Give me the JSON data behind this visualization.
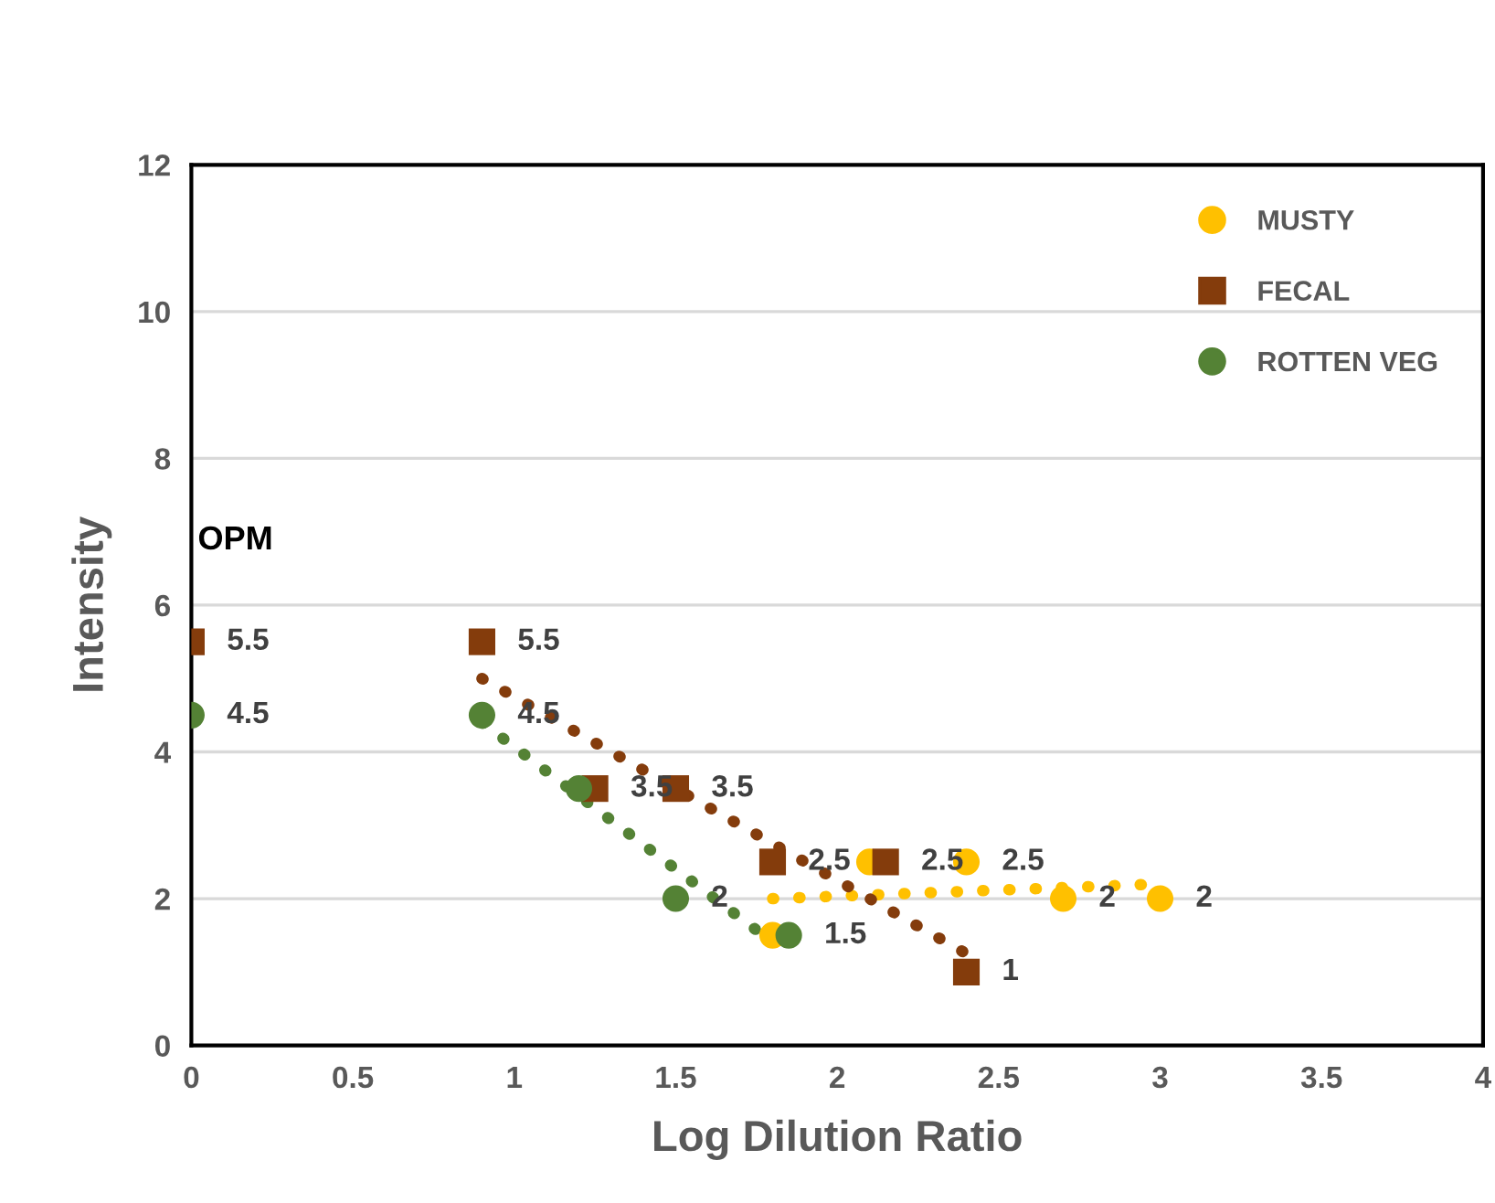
{
  "chart_data": {
    "type": "scatter",
    "xlabel": "Log Dilution Ratio",
    "ylabel": "Intensity",
    "xlim": [
      0,
      4
    ],
    "ylim": [
      0,
      12
    ],
    "xticks": [
      0,
      0.5,
      1,
      1.5,
      2,
      2.5,
      3,
      3.5,
      4
    ],
    "yticks": [
      0,
      2,
      4,
      6,
      8,
      10,
      12
    ],
    "grid": "y",
    "legend": "top right",
    "annotations": [
      "OPM"
    ],
    "series": [
      {
        "name": "MUSTY",
        "marker": "circle",
        "color": "#ffc000",
        "x": [
          1.8,
          2.1,
          2.4,
          2.7,
          3.0
        ],
        "values": [
          1.5,
          2.5,
          2.5,
          2.0,
          2.0
        ],
        "value_labels": [
          null,
          null,
          "2.5",
          "2",
          "2"
        ]
      },
      {
        "name": "FECAL",
        "marker": "square",
        "color": "#843c0c",
        "x": [
          0,
          0.9,
          1.25,
          1.5,
          1.8,
          2.15,
          2.4
        ],
        "values": [
          5.5,
          5.5,
          3.5,
          3.5,
          2.5,
          2.5,
          1.0
        ],
        "value_labels": [
          "5.5",
          "5.5",
          "3.5",
          "3.5",
          "2.5",
          "2.5",
          "1"
        ]
      },
      {
        "name": "ROTTEN VEG",
        "marker": "circle",
        "color": "#548235",
        "x": [
          0,
          0.9,
          1.2,
          1.5,
          1.85
        ],
        "values": [
          4.5,
          4.5,
          3.5,
          2.0,
          1.5
        ],
        "value_labels": [
          "4.5",
          "4.5",
          null,
          "2",
          "1.5"
        ]
      },
      {
        "type": "line",
        "line_style": "dotted",
        "color": "#ffc000",
        "x": [
          1.8,
          3.0
        ],
        "values": [
          2.0,
          2.2
        ]
      },
      {
        "type": "line",
        "line_style": "dotted",
        "color": "#843c0c",
        "x": [
          0.9,
          2.4
        ],
        "values": [
          5.0,
          1.25
        ]
      },
      {
        "type": "line",
        "line_style": "dotted",
        "color": "#548235",
        "x": [
          0.9,
          1.78
        ],
        "values": [
          4.4,
          1.47
        ]
      }
    ]
  }
}
